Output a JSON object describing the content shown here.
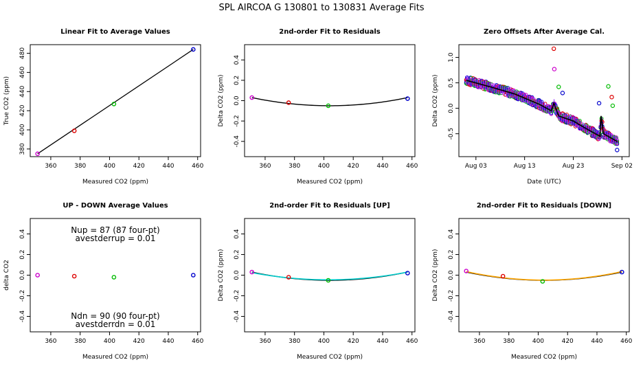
{
  "figure_title": "SPL   AIRCOA G   130801 to 130831   Average Fits",
  "colors": {
    "magenta": "#cc00cc",
    "red": "#dd0000",
    "green": "#00bb00",
    "blue": "#0000cc",
    "black": "#000000",
    "cyan": "#00cccc",
    "orange": "#ffa500",
    "bar_purple": "#9933ff"
  },
  "chart_data": [
    {
      "type": "scatter",
      "title": "Linear Fit to Average Values",
      "xlabel": "Measured CO2 (ppm)",
      "ylabel": "True CO2 (ppm)",
      "xlim": [
        346,
        462
      ],
      "ylim": [
        372,
        489
      ],
      "xticks": [
        360,
        380,
        400,
        420,
        440,
        460
      ],
      "xtick_labels": [
        "360",
        "380",
        "400",
        "420",
        "440",
        "460"
      ],
      "yticks": [
        380,
        400,
        420,
        440,
        460,
        480
      ],
      "ytick_labels": [
        "380",
        "400",
        "420",
        "440",
        "460",
        "480"
      ],
      "points": [
        {
          "x": 351,
          "y": 375,
          "color": "magenta"
        },
        {
          "x": 376,
          "y": 399,
          "color": "red"
        },
        {
          "x": 403,
          "y": 427,
          "color": "green"
        },
        {
          "x": 457,
          "y": 484,
          "color": "blue"
        }
      ],
      "fit_line": {
        "x": [
          351,
          457
        ],
        "y": [
          375,
          484
        ],
        "color": "black"
      }
    },
    {
      "type": "scatter",
      "title": "2nd-order Fit to Residuals",
      "xlabel": "Measured CO2 (ppm)",
      "ylabel": "Delta CO2 (ppm)",
      "xlim": [
        346,
        462
      ],
      "ylim": [
        -0.55,
        0.55
      ],
      "xticks": [
        360,
        380,
        400,
        420,
        440,
        460
      ],
      "xtick_labels": [
        "360",
        "380",
        "400",
        "420",
        "440",
        "460"
      ],
      "yticks": [
        -0.4,
        -0.2,
        0.0,
        0.2,
        0.4
      ],
      "ytick_labels": [
        "-0.4",
        "-0.2",
        "0.0",
        "0.2",
        "0.4"
      ],
      "points": [
        {
          "x": 351,
          "y": 0.03,
          "color": "magenta"
        },
        {
          "x": 376,
          "y": -0.02,
          "color": "red"
        },
        {
          "x": 403,
          "y": -0.05,
          "color": "green"
        },
        {
          "x": 457,
          "y": 0.02,
          "color": "blue"
        }
      ],
      "curves": [
        {
          "x0": 351,
          "x1": 457,
          "vertex_x": 404,
          "vertex_y": -0.05,
          "end_y": 0.03,
          "color": "black"
        }
      ]
    },
    {
      "type": "scatter",
      "title": "Zero Offsets After Average Cal.",
      "xlabel": "Date (UTC)",
      "ylabel": "Delta CO2 (ppm)",
      "xlim": [
        -1.5,
        33.5
      ],
      "ylim": [
        -0.95,
        1.25
      ],
      "xticks": [
        2,
        12,
        22,
        32
      ],
      "xtick_labels": [
        "Aug 03",
        "Aug 13",
        "Aug 23",
        "Sep 02"
      ],
      "yticks": [
        -0.5,
        0.0,
        0.5,
        1.0
      ],
      "ytick_labels": [
        "-0.5",
        "0.0",
        "0.5",
        "1.0"
      ],
      "trend": {
        "x": [
          0,
          5,
          10,
          15,
          17.5,
          18,
          19,
          22,
          25,
          27.5,
          27.7,
          28.2,
          31
        ],
        "y": [
          0.55,
          0.42,
          0.28,
          0.08,
          -0.05,
          0.1,
          -0.15,
          -0.25,
          -0.42,
          -0.55,
          -0.15,
          -0.5,
          -0.65
        ]
      },
      "outliers": [
        {
          "x": 18.0,
          "y": 1.17,
          "color": "red"
        },
        {
          "x": 18.1,
          "y": 0.77,
          "color": "magenta"
        },
        {
          "x": 19.0,
          "y": 0.42,
          "color": "green"
        },
        {
          "x": 19.8,
          "y": 0.3,
          "color": "blue"
        },
        {
          "x": 29.2,
          "y": 0.43,
          "color": "green"
        },
        {
          "x": 29.9,
          "y": 0.22,
          "color": "red"
        },
        {
          "x": 30.1,
          "y": 0.05,
          "color": "green"
        },
        {
          "x": 27.3,
          "y": 0.1,
          "color": "blue"
        },
        {
          "x": 31.0,
          "y": -0.82,
          "color": "blue"
        }
      ]
    },
    {
      "type": "scatter",
      "title": "UP - DOWN Average Values",
      "xlabel": "Measured CO2 (ppm)",
      "ylabel": "delta CO2",
      "xlim": [
        346,
        462
      ],
      "ylim": [
        -0.55,
        0.55
      ],
      "xticks": [
        360,
        380,
        400,
        420,
        440,
        460
      ],
      "xtick_labels": [
        "360",
        "380",
        "400",
        "420",
        "440",
        "460"
      ],
      "yticks": [
        -0.4,
        -0.2,
        0.0,
        0.2,
        0.4
      ],
      "ytick_labels": [
        "-0.4",
        "-0.2",
        "0.0",
        "0.2",
        "0.4"
      ],
      "points": [
        {
          "x": 351,
          "y": 0.0,
          "color": "magenta"
        },
        {
          "x": 376,
          "y": -0.01,
          "color": "red"
        },
        {
          "x": 403,
          "y": -0.02,
          "color": "green"
        },
        {
          "x": 457,
          "y": 0.0,
          "color": "blue"
        }
      ],
      "annotations": [
        "Nup = 87 (87 four-pt)",
        "avestderrup =  0.01",
        "Ndn = 90 (90 four-pt)",
        "avestderrdn =  0.01"
      ]
    },
    {
      "type": "scatter",
      "title": "2nd-order Fit to Residuals [UP]",
      "xlabel": "Measured CO2 (ppm)",
      "ylabel": "Delta CO2 (ppm)",
      "xlim": [
        346,
        462
      ],
      "ylim": [
        -0.55,
        0.55
      ],
      "xticks": [
        360,
        380,
        400,
        420,
        440,
        460
      ],
      "xtick_labels": [
        "360",
        "380",
        "400",
        "420",
        "440",
        "460"
      ],
      "yticks": [
        -0.4,
        -0.2,
        0.0,
        0.2,
        0.4
      ],
      "ytick_labels": [
        "-0.4",
        "-0.2",
        "0.0",
        "0.2",
        "0.4"
      ],
      "points": [
        {
          "x": 351,
          "y": 0.03,
          "color": "magenta"
        },
        {
          "x": 376,
          "y": -0.02,
          "color": "red"
        },
        {
          "x": 403,
          "y": -0.05,
          "color": "green"
        },
        {
          "x": 457,
          "y": 0.02,
          "color": "blue"
        }
      ],
      "curves": [
        {
          "x0": 351,
          "x1": 457,
          "vertex_x": 404,
          "vertex_y": -0.05,
          "end_y": 0.03,
          "color": "black"
        },
        {
          "x0": 351,
          "x1": 457,
          "vertex_x": 403,
          "vertex_y": -0.045,
          "end_y": 0.03,
          "color": "cyan"
        }
      ]
    },
    {
      "type": "scatter",
      "title": "2nd-order Fit to Residuals [DOWN]",
      "xlabel": "Measured CO2 (ppm)",
      "ylabel": "Delta CO2 (ppm)",
      "xlim": [
        346,
        462
      ],
      "ylim": [
        -0.55,
        0.55
      ],
      "xticks": [
        360,
        380,
        400,
        420,
        440,
        460
      ],
      "xtick_labels": [
        "360",
        "380",
        "400",
        "420",
        "440",
        "460"
      ],
      "yticks": [
        -0.4,
        -0.2,
        0.0,
        0.2,
        0.4
      ],
      "ytick_labels": [
        "-0.4",
        "-0.2",
        "0.0",
        "0.2",
        "0.4"
      ],
      "points": [
        {
          "x": 351,
          "y": 0.04,
          "color": "magenta"
        },
        {
          "x": 376,
          "y": -0.01,
          "color": "red"
        },
        {
          "x": 403,
          "y": -0.06,
          "color": "green"
        },
        {
          "x": 457,
          "y": 0.03,
          "color": "blue"
        }
      ],
      "curves": [
        {
          "x0": 351,
          "x1": 457,
          "vertex_x": 404,
          "vertex_y": -0.05,
          "end_y": 0.03,
          "color": "black"
        },
        {
          "x0": 351,
          "x1": 457,
          "vertex_x": 404,
          "vertex_y": -0.048,
          "end_y": 0.035,
          "color": "orange"
        }
      ]
    }
  ]
}
